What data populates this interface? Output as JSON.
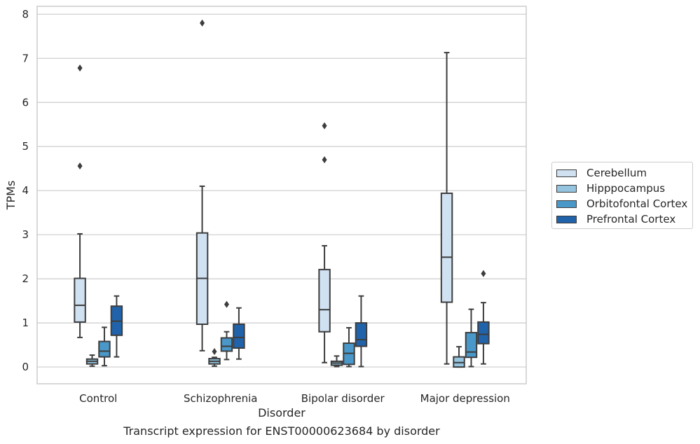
{
  "caption": "Transcript expression for ENST00000623684 by disorder",
  "chart_data": {
    "type": "box",
    "xlabel": "Disorder",
    "ylabel": "TPMs",
    "ylim": [
      -0.38,
      8.18
    ],
    "yticks": [
      0,
      1,
      2,
      3,
      4,
      5,
      6,
      7,
      8
    ],
    "grid": "horizontal",
    "legend_position": "right",
    "categories": [
      "Control",
      "Schizophrenia",
      "Bipolar disorder",
      "Major depression"
    ],
    "series": [
      {
        "name": "Cerebellum",
        "color": "#d0e1f2",
        "boxes": [
          {
            "whisker_low": 0.67,
            "q1": 1.02,
            "median": 1.4,
            "q3": 2.01,
            "whisker_high": 3.02,
            "outliers": [
              4.56,
              6.78
            ]
          },
          {
            "whisker_low": 0.37,
            "q1": 0.97,
            "median": 2.01,
            "q3": 3.04,
            "whisker_high": 4.1,
            "outliers": [
              7.8
            ]
          },
          {
            "whisker_low": 0.1,
            "q1": 0.8,
            "median": 1.3,
            "q3": 2.21,
            "whisker_high": 2.75,
            "outliers": [
              4.7,
              5.47
            ]
          },
          {
            "whisker_low": 0.07,
            "q1": 1.47,
            "median": 2.49,
            "q3": 3.94,
            "whisker_high": 7.13,
            "outliers": []
          }
        ]
      },
      {
        "name": "Hipppocampus",
        "color": "#94c4df",
        "boxes": [
          {
            "whisker_low": 0.02,
            "q1": 0.07,
            "median": 0.13,
            "q3": 0.18,
            "whisker_high": 0.27,
            "outliers": []
          },
          {
            "whisker_low": 0.02,
            "q1": 0.07,
            "median": 0.13,
            "q3": 0.19,
            "whisker_high": 0.22,
            "outliers": [
              0.35
            ]
          },
          {
            "whisker_low": 0.01,
            "q1": 0.04,
            "median": 0.09,
            "q3": 0.13,
            "whisker_high": 0.25,
            "outliers": []
          },
          {
            "whisker_low": 0.0,
            "q1": 0.0,
            "median": 0.1,
            "q3": 0.23,
            "whisker_high": 0.46,
            "outliers": []
          }
        ]
      },
      {
        "name": "Orbitofontal Cortex",
        "color": "#4a98c9",
        "boxes": [
          {
            "whisker_low": 0.03,
            "q1": 0.23,
            "median": 0.36,
            "q3": 0.58,
            "whisker_high": 0.9,
            "outliers": []
          },
          {
            "whisker_low": 0.17,
            "q1": 0.36,
            "median": 0.47,
            "q3": 0.66,
            "whisker_high": 0.8,
            "outliers": [
              1.42
            ]
          },
          {
            "whisker_low": 0.01,
            "q1": 0.06,
            "median": 0.31,
            "q3": 0.54,
            "whisker_high": 0.89,
            "outliers": []
          },
          {
            "whisker_low": 0.01,
            "q1": 0.22,
            "median": 0.34,
            "q3": 0.78,
            "whisker_high": 1.31,
            "outliers": []
          }
        ]
      },
      {
        "name": "Prefrontal Cortex",
        "color": "#2163aa",
        "boxes": [
          {
            "whisker_low": 0.23,
            "q1": 0.72,
            "median": 1.04,
            "q3": 1.38,
            "whisker_high": 1.61,
            "outliers": []
          },
          {
            "whisker_low": 0.18,
            "q1": 0.43,
            "median": 0.67,
            "q3": 0.97,
            "whisker_high": 1.34,
            "outliers": []
          },
          {
            "whisker_low": 0.01,
            "q1": 0.47,
            "median": 0.62,
            "q3": 1.0,
            "whisker_high": 1.61,
            "outliers": []
          },
          {
            "whisker_low": 0.07,
            "q1": 0.53,
            "median": 0.74,
            "q3": 1.02,
            "whisker_high": 1.46,
            "outliers": [
              2.12
            ]
          }
        ]
      }
    ]
  }
}
